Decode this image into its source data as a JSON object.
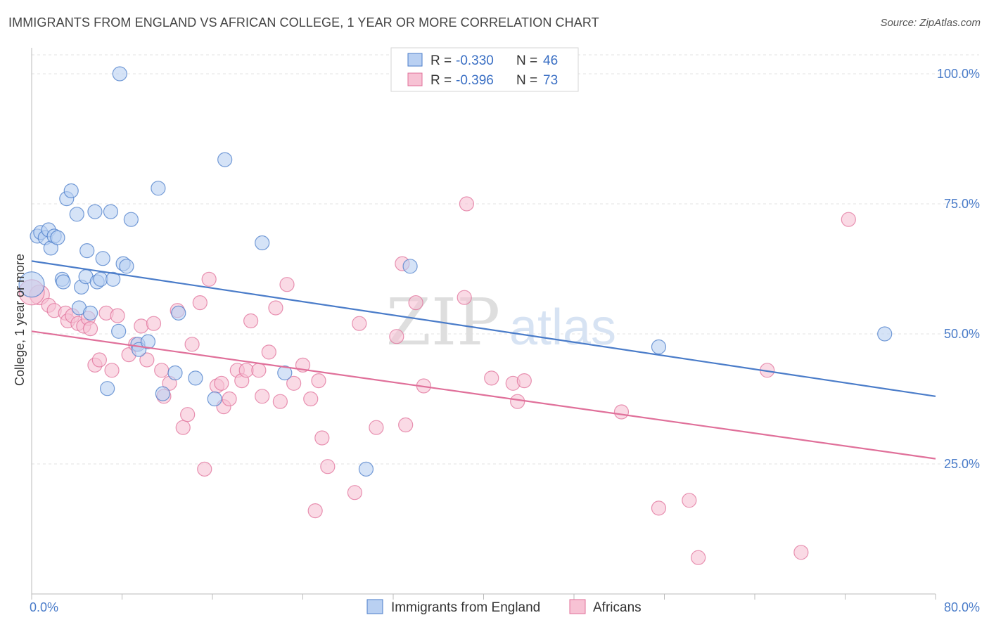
{
  "title": "IMMIGRANTS FROM ENGLAND VS AFRICAN COLLEGE, 1 YEAR OR MORE CORRELATION CHART",
  "source": "Source: ZipAtlas.com",
  "watermark": {
    "zip": "ZIP",
    "atlas": "atlas"
  },
  "colors": {
    "blue": "#4a7cc9",
    "blue_fill": "#b9d0f2",
    "pink": "#e0709a",
    "pink_fill": "#f7c2d4"
  },
  "chart_data": {
    "type": "scatter",
    "xlabel": "",
    "ylabel": "College, 1 year or more",
    "xlim": [
      0,
      80
    ],
    "ylim": [
      0,
      105
    ],
    "x_tick_labels": [
      "0.0%",
      "80.0%"
    ],
    "y_ticks": [
      25,
      50,
      75,
      100
    ],
    "y_tick_labels": [
      "25.0%",
      "50.0%",
      "75.0%",
      "100.0%"
    ],
    "grid": true,
    "legend": {
      "placement": "top-center",
      "entries": [
        {
          "r_label": "R = ",
          "r": "-0.330",
          "n_label": "N = ",
          "n": "46"
        },
        {
          "r_label": "R = ",
          "r": "-0.396",
          "n_label": "N = ",
          "n": "73"
        }
      ]
    },
    "series": [
      {
        "name": "Immigrants from England",
        "color": "#4a7cc9",
        "trend": [
          [
            0,
            64.0
          ],
          [
            80,
            38.0
          ]
        ],
        "points": [
          [
            0.0,
            59.5
          ],
          [
            0.5,
            68.8
          ],
          [
            0.8,
            69.5
          ],
          [
            1.2,
            68.5
          ],
          [
            1.5,
            70.0
          ],
          [
            1.7,
            66.5
          ],
          [
            2.0,
            68.8
          ],
          [
            2.3,
            68.5
          ],
          [
            2.7,
            60.5
          ],
          [
            2.8,
            60.0
          ],
          [
            3.1,
            76.0
          ],
          [
            3.5,
            77.5
          ],
          [
            4.0,
            73.0
          ],
          [
            4.2,
            55.0
          ],
          [
            4.4,
            59.0
          ],
          [
            4.8,
            61.0
          ],
          [
            4.9,
            66.0
          ],
          [
            5.2,
            54.0
          ],
          [
            5.6,
            73.5
          ],
          [
            5.8,
            60.0
          ],
          [
            6.1,
            60.5
          ],
          [
            6.3,
            64.5
          ],
          [
            6.7,
            39.5
          ],
          [
            7.0,
            73.5
          ],
          [
            7.2,
            60.5
          ],
          [
            7.7,
            50.5
          ],
          [
            7.8,
            100.0
          ],
          [
            8.1,
            63.5
          ],
          [
            8.4,
            63.0
          ],
          [
            8.8,
            72.0
          ],
          [
            9.4,
            48.0
          ],
          [
            9.5,
            47.0
          ],
          [
            10.3,
            48.5
          ],
          [
            11.2,
            78.0
          ],
          [
            11.6,
            38.5
          ],
          [
            12.7,
            42.5
          ],
          [
            13.0,
            54.0
          ],
          [
            14.5,
            41.5
          ],
          [
            16.2,
            37.5
          ],
          [
            17.1,
            83.5
          ],
          [
            20.4,
            67.5
          ],
          [
            22.4,
            42.5
          ],
          [
            29.6,
            24.0
          ],
          [
            33.5,
            63.0
          ],
          [
            55.5,
            47.5
          ],
          [
            75.5,
            50.0
          ]
        ],
        "sizes": [
          18,
          10,
          10,
          10,
          10,
          10,
          10,
          10,
          10,
          10,
          10,
          10,
          10,
          10,
          10,
          10,
          10,
          10,
          10,
          10,
          10,
          10,
          10,
          10,
          10,
          10,
          10,
          10,
          10,
          10,
          10,
          10,
          10,
          10,
          10,
          10,
          10,
          10,
          10,
          10,
          10,
          10,
          10,
          10,
          10,
          10
        ]
      },
      {
        "name": "Africans",
        "color": "#e0709a",
        "trend": [
          [
            0,
            50.5
          ],
          [
            80,
            26.0
          ]
        ],
        "points": [
          [
            0.7,
            57.5
          ],
          [
            1.5,
            55.5
          ],
          [
            2.0,
            54.5
          ],
          [
            3.0,
            54.0
          ],
          [
            3.2,
            52.5
          ],
          [
            3.6,
            53.5
          ],
          [
            4.1,
            52.0
          ],
          [
            4.6,
            51.5
          ],
          [
            5.0,
            53.0
          ],
          [
            5.2,
            51.0
          ],
          [
            5.6,
            44.0
          ],
          [
            6.0,
            45.0
          ],
          [
            6.6,
            54.0
          ],
          [
            7.1,
            43.0
          ],
          [
            7.6,
            53.5
          ],
          [
            8.6,
            46.0
          ],
          [
            9.2,
            48.0
          ],
          [
            9.7,
            51.5
          ],
          [
            10.2,
            45.0
          ],
          [
            10.8,
            52.0
          ],
          [
            11.5,
            43.0
          ],
          [
            11.7,
            38.0
          ],
          [
            12.2,
            40.5
          ],
          [
            12.9,
            54.5
          ],
          [
            13.4,
            32.0
          ],
          [
            13.8,
            34.5
          ],
          [
            14.2,
            48.0
          ],
          [
            14.9,
            56.0
          ],
          [
            15.3,
            24.0
          ],
          [
            15.7,
            60.5
          ],
          [
            16.4,
            40.0
          ],
          [
            16.8,
            40.5
          ],
          [
            17.0,
            36.0
          ],
          [
            17.5,
            37.5
          ],
          [
            18.2,
            43.0
          ],
          [
            18.6,
            41.0
          ],
          [
            19.0,
            43.0
          ],
          [
            19.4,
            52.5
          ],
          [
            20.1,
            43.0
          ],
          [
            20.4,
            38.0
          ],
          [
            21.0,
            46.5
          ],
          [
            21.6,
            55.0
          ],
          [
            22.0,
            37.0
          ],
          [
            22.6,
            59.5
          ],
          [
            23.2,
            40.5
          ],
          [
            24.0,
            44.0
          ],
          [
            24.7,
            37.5
          ],
          [
            25.1,
            16.0
          ],
          [
            25.4,
            41.0
          ],
          [
            25.7,
            30.0
          ],
          [
            26.2,
            24.5
          ],
          [
            28.6,
            19.5
          ],
          [
            29.0,
            52.0
          ],
          [
            30.5,
            32.0
          ],
          [
            32.3,
            49.5
          ],
          [
            32.8,
            63.5
          ],
          [
            33.1,
            32.5
          ],
          [
            34.0,
            56.0
          ],
          [
            34.7,
            40.0
          ],
          [
            38.3,
            57.0
          ],
          [
            38.5,
            75.0
          ],
          [
            40.7,
            41.5
          ],
          [
            42.6,
            40.5
          ],
          [
            43.0,
            37.0
          ],
          [
            43.6,
            41.0
          ],
          [
            52.2,
            35.0
          ],
          [
            55.5,
            16.5
          ],
          [
            58.2,
            18.0
          ],
          [
            59.0,
            7.0
          ],
          [
            65.1,
            43.0
          ],
          [
            68.1,
            8.0
          ],
          [
            72.3,
            72.0
          ],
          [
            0.0,
            58.0
          ]
        ],
        "sizes": [
          14,
          10,
          10,
          10,
          10,
          10,
          10,
          10,
          10,
          10,
          10,
          10,
          10,
          10,
          10,
          10,
          10,
          10,
          10,
          10,
          10,
          10,
          10,
          10,
          10,
          10,
          10,
          10,
          10,
          10,
          10,
          10,
          10,
          10,
          10,
          10,
          10,
          10,
          10,
          10,
          10,
          10,
          10,
          10,
          10,
          10,
          10,
          10,
          10,
          10,
          10,
          10,
          10,
          10,
          10,
          10,
          10,
          10,
          10,
          10,
          10,
          10,
          10,
          10,
          10,
          10,
          10,
          10,
          10,
          10,
          10,
          10,
          18
        ]
      }
    ]
  }
}
